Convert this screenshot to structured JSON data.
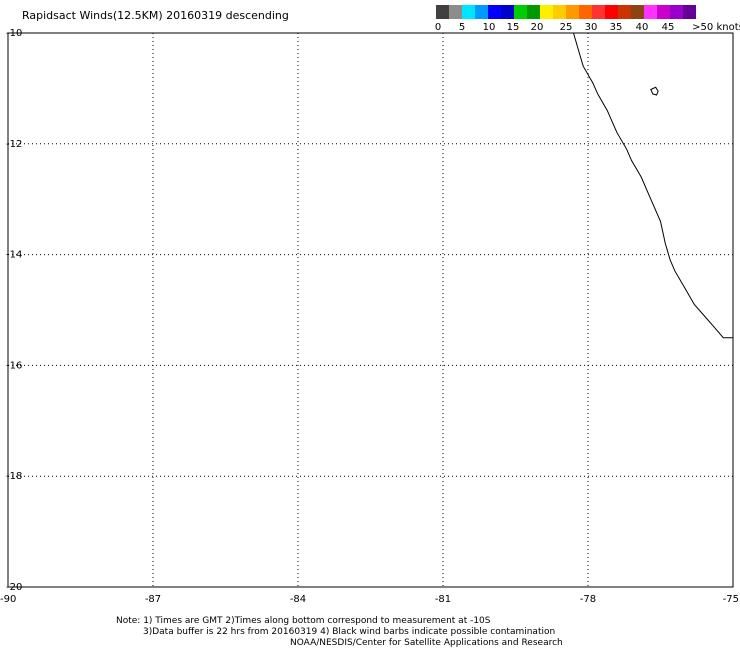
{
  "title": "Rapidsact Winds(12.5KM) 20160319 descending",
  "colorbar": {
    "colors": [
      "#404040",
      "#8c8c8c",
      "#00e5ff",
      "#0099ff",
      "#0000ff",
      "#0000cc",
      "#00cc00",
      "#009900",
      "#ffee00",
      "#ffcc00",
      "#ff9900",
      "#ff6600",
      "#ff3333",
      "#ff0000",
      "#cc3300",
      "#8b4513",
      "#ff33ff",
      "#cc00cc",
      "#9900cc",
      "#660099"
    ],
    "labels": [
      "0",
      "5",
      "10",
      "15",
      "20",
      "25",
      "30",
      "35",
      "40",
      "45",
      ">50 knots"
    ]
  },
  "map": {
    "lat_ticks": [
      "-10",
      "-12",
      "-14",
      "-16",
      "-18",
      "-20"
    ],
    "lon_ticks": [
      "-90",
      "-87",
      "-84",
      "-81",
      "-78",
      "-75"
    ],
    "lat_range": [
      -20,
      -10
    ],
    "lon_range": [
      -90,
      -75
    ],
    "coastline": [
      [
        -78.3,
        -10.0
      ],
      [
        -78.2,
        -10.3
      ],
      [
        -78.1,
        -10.6
      ],
      [
        -77.9,
        -10.9
      ],
      [
        -77.8,
        -11.1
      ],
      [
        -77.6,
        -11.4
      ],
      [
        -77.4,
        -11.8
      ],
      [
        -77.2,
        -12.1
      ],
      [
        -77.1,
        -12.3
      ],
      [
        -76.9,
        -12.6
      ],
      [
        -76.7,
        -13.0
      ],
      [
        -76.5,
        -13.4
      ],
      [
        -76.4,
        -13.8
      ],
      [
        -76.3,
        -14.1
      ],
      [
        -76.2,
        -14.3
      ],
      [
        -76.0,
        -14.6
      ],
      [
        -75.8,
        -14.9
      ],
      [
        -75.6,
        -15.1
      ],
      [
        -75.4,
        -15.3
      ],
      [
        -75.2,
        -15.5
      ],
      [
        -75.0,
        -15.5
      ]
    ],
    "island": [
      [
        -76.7,
        -11.02
      ],
      [
        -76.6,
        -10.98
      ],
      [
        -76.55,
        -11.05
      ],
      [
        -76.58,
        -11.12
      ],
      [
        -76.66,
        -11.1
      ]
    ]
  },
  "notes": {
    "line1": "Note: 1) Times are GMT 2)Times along bottom correspond to measurement at -10S",
    "line2": "3)Data buffer is 22 hrs from 20160319 4) Black wind barbs indicate possible contamination",
    "line3": "NOAA/NESDIS/Center for Satellite Applications and Research"
  }
}
